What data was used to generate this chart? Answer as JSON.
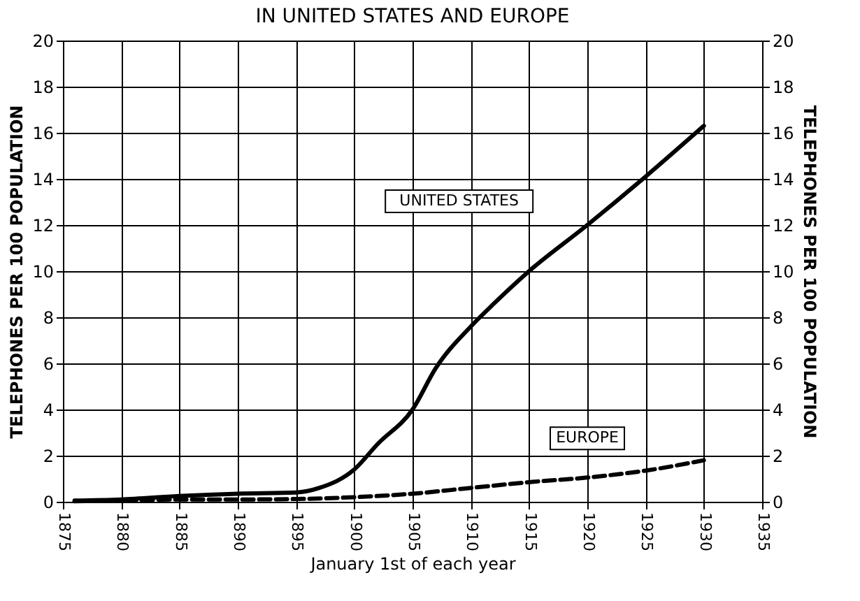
{
  "chart_data": {
    "type": "line",
    "title": "IN UNITED STATES AND EUROPE",
    "xlabel": "January 1st of each year",
    "ylabel": "TELEPHONES PER 100 POPULATION",
    "y2label": "TELEPHONES PER 100 POPULATION",
    "xlim": [
      1875,
      1935
    ],
    "xticks": [
      1875,
      1880,
      1885,
      1890,
      1895,
      1900,
      1905,
      1910,
      1915,
      1920,
      1925,
      1930,
      1935
    ],
    "ylim": [
      0,
      20
    ],
    "yticks": [
      0,
      2,
      4,
      6,
      8,
      10,
      12,
      14,
      16,
      18,
      20
    ],
    "y2lim": [
      0,
      20
    ],
    "y2ticks": [
      0,
      2,
      4,
      6,
      8,
      10,
      12,
      14,
      16,
      18,
      20
    ],
    "grid": true,
    "marker": "none",
    "series": [
      {
        "name": "UNITED STATES",
        "color": "#000000",
        "line_style": "solid",
        "x": [
          1876,
          1880,
          1885,
          1890,
          1895,
          1897,
          1900,
          1902,
          1905,
          1907,
          1910,
          1912,
          1915,
          1920,
          1925,
          1930
        ],
        "values": [
          0.05,
          0.1,
          0.25,
          0.35,
          0.4,
          0.6,
          1.4,
          2.5,
          4.0,
          5.8,
          7.6,
          8.6,
          10.0,
          12.0,
          14.1,
          16.3
        ]
      },
      {
        "name": "EUROPE",
        "color": "#000000",
        "line_style": "dashed",
        "x": [
          1876,
          1880,
          1885,
          1890,
          1895,
          1900,
          1905,
          1910,
          1915,
          1920,
          1925,
          1930
        ],
        "values": [
          0.02,
          0.05,
          0.1,
          0.1,
          0.12,
          0.2,
          0.35,
          0.6,
          0.85,
          1.05,
          1.35,
          1.8
        ]
      }
    ]
  }
}
